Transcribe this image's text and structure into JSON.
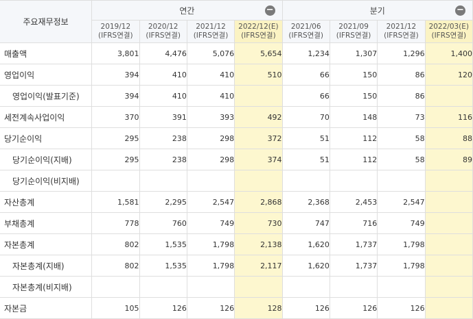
{
  "corner_label": "주요재무정보",
  "groups": [
    {
      "label": "연간",
      "toggle": "−"
    },
    {
      "label": "분기",
      "toggle": "−"
    }
  ],
  "periods": [
    {
      "date": "2019/12",
      "basis": "(IFRS연결)"
    },
    {
      "date": "2020/12",
      "basis": "(IFRS연결)"
    },
    {
      "date": "2021/12",
      "basis": "(IFRS연결)"
    },
    {
      "date": "2022/12(E)",
      "basis": "(IFRS연결)"
    },
    {
      "date": "2021/06",
      "basis": "(IFRS연결)"
    },
    {
      "date": "2021/09",
      "basis": "(IFRS연결)"
    },
    {
      "date": "2021/12",
      "basis": "(IFRS연결)"
    },
    {
      "date": "2022/03(E)",
      "basis": "(IFRS연결)"
    }
  ],
  "rows": [
    {
      "label": "매출액",
      "values": [
        "3,801",
        "4,476",
        "5,076",
        "5,654",
        "1,234",
        "1,307",
        "1,296",
        "1,400"
      ]
    },
    {
      "label": "영업이익",
      "values": [
        "394",
        "410",
        "410",
        "510",
        "66",
        "150",
        "86",
        "120"
      ]
    },
    {
      "label": "영업이익(발표기준)",
      "values": [
        "394",
        "410",
        "410",
        "",
        "66",
        "150",
        "86",
        ""
      ]
    },
    {
      "label": "세전계속사업이익",
      "values": [
        "370",
        "391",
        "393",
        "492",
        "70",
        "148",
        "73",
        "116"
      ]
    },
    {
      "label": "당기순이익",
      "values": [
        "295",
        "238",
        "298",
        "372",
        "51",
        "112",
        "58",
        "88"
      ]
    },
    {
      "label": "당기순이익(지배)",
      "values": [
        "295",
        "238",
        "298",
        "374",
        "51",
        "112",
        "58",
        "89"
      ]
    },
    {
      "label": "당기순이익(비지배)",
      "values": [
        "",
        "",
        "",
        "",
        "",
        "",
        "",
        ""
      ]
    },
    {
      "label": "자산총계",
      "values": [
        "1,581",
        "2,295",
        "2,547",
        "2,868",
        "2,368",
        "2,453",
        "2,547",
        ""
      ]
    },
    {
      "label": "부채총계",
      "values": [
        "778",
        "760",
        "749",
        "730",
        "747",
        "716",
        "749",
        ""
      ]
    },
    {
      "label": "자본총계",
      "values": [
        "802",
        "1,535",
        "1,798",
        "2,138",
        "1,620",
        "1,737",
        "1,798",
        ""
      ]
    },
    {
      "label": "자본총계(지배)",
      "values": [
        "802",
        "1,535",
        "1,798",
        "2,117",
        "1,620",
        "1,737",
        "1,798",
        ""
      ]
    },
    {
      "label": "자본총계(비지배)",
      "values": [
        "",
        "",
        "",
        "",
        "",
        "",
        "",
        ""
      ]
    },
    {
      "label": "자본금",
      "values": [
        "105",
        "126",
        "126",
        "128",
        "126",
        "126",
        "126",
        ""
      ]
    }
  ]
}
